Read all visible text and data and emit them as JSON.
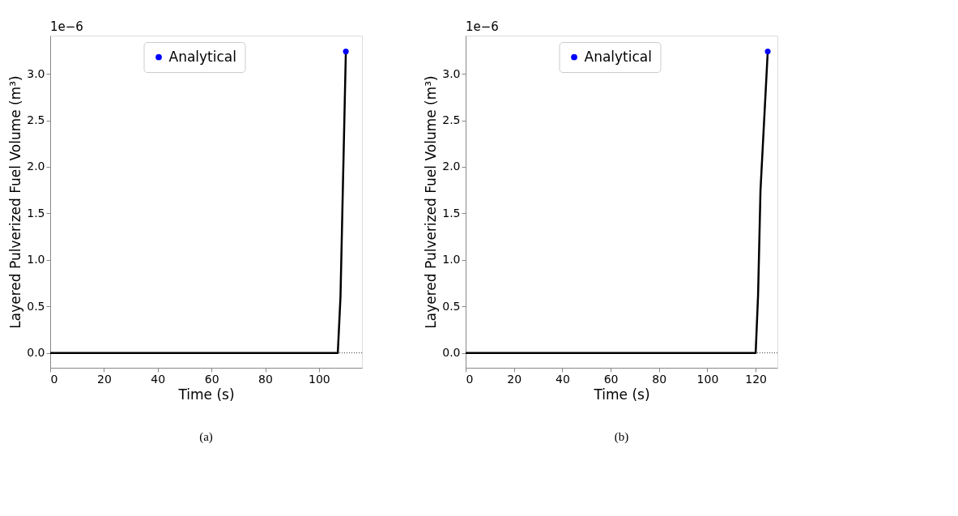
{
  "chart_data": [
    {
      "type": "line",
      "xlabel": "Time (s)",
      "ylabel": "Layered Pulverized Fuel Volume (m³)",
      "xlim": [
        0,
        116
      ],
      "xticks": [
        0,
        20,
        40,
        60,
        80,
        100
      ],
      "ylim": [
        -0.16,
        3.41
      ],
      "yticks": [
        {
          "value": 0,
          "label": "0.0"
        },
        0.5,
        {
          "value": 1,
          "label": "1.0"
        },
        1.5,
        {
          "value": 2,
          "label": "2.0"
        },
        2.5,
        {
          "value": 3,
          "label": "3.0"
        }
      ],
      "grid": false,
      "legend": "top",
      "annotations": [
        "1e−6",
        "(a)"
      ],
      "ref_lines": [
        {
          "axis": "y",
          "value": 0,
          "line_style": "dotted",
          "color": "#000000"
        }
      ],
      "series": [
        {
          "color": "#000000",
          "x": [
            0,
            107,
            108,
            110
          ],
          "values": [
            0,
            0,
            0.6,
            3.24
          ]
        },
        {
          "name": "Analytical",
          "color": "#0000ff",
          "x": [
            110
          ],
          "values": [
            3.24
          ],
          "type": "scatter",
          "marker": "circle"
        }
      ]
    },
    {
      "type": "line",
      "xlabel": "Time (s)",
      "ylabel": "Layered Pulverized Fuel Volume (m³)",
      "xlim": [
        0,
        129
      ],
      "xticks": [
        0,
        20,
        40,
        60,
        80,
        100,
        120
      ],
      "ylim": [
        -0.16,
        3.41
      ],
      "yticks": [
        {
          "value": 0,
          "label": "0.0"
        },
        0.5,
        {
          "value": 1,
          "label": "1.0"
        },
        1.5,
        {
          "value": 2,
          "label": "2.0"
        },
        2.5,
        {
          "value": 3,
          "label": "3.0"
        }
      ],
      "grid": false,
      "legend": "top",
      "annotations": [
        "1e−6",
        "(b)"
      ],
      "ref_lines": [
        {
          "axis": "y",
          "value": 0,
          "line_style": "dotted",
          "color": "#000000"
        }
      ],
      "series": [
        {
          "color": "#000000",
          "x": [
            0,
            120,
            121,
            122,
            125
          ],
          "values": [
            0,
            0,
            0.62,
            1.75,
            3.24
          ]
        },
        {
          "name": "Analytical",
          "color": "#0000ff",
          "x": [
            125
          ],
          "values": [
            3.24
          ],
          "type": "scatter",
          "marker": "circle"
        }
      ]
    }
  ]
}
